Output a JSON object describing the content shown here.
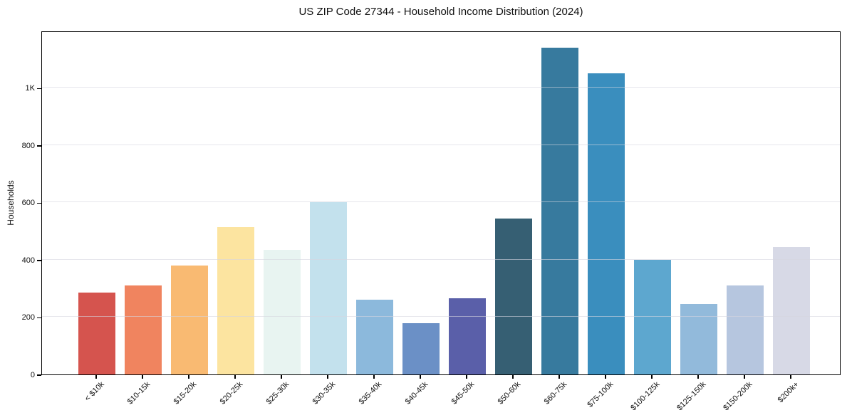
{
  "title": "US ZIP Code 27344 - Household Income Distribution (2024)",
  "chart_data": {
    "type": "bar",
    "title": "US ZIP Code 27344 - Household Income Distribution (2024)",
    "xlabel": "",
    "ylabel": "Households",
    "ylim": [
      0,
      1200
    ],
    "grid": "horizontal",
    "legend": "none",
    "yticks": [
      {
        "value": 0,
        "label": "0"
      },
      {
        "value": 200,
        "label": "200"
      },
      {
        "value": 400,
        "label": "400"
      },
      {
        "value": 600,
        "label": "600"
      },
      {
        "value": 800,
        "label": "800"
      },
      {
        "value": 1000,
        "label": "1K"
      }
    ],
    "categories": [
      "< $10k",
      "$10-15k",
      "$15-20k",
      "$20-25k",
      "$25-30k",
      "$30-35k",
      "$35-40k",
      "$40-45k",
      "$45-50k",
      "$50-60k",
      "$60-75k",
      "$75-100k",
      "$100-125k",
      "$125-150k",
      "$150-200k",
      "$200k+"
    ],
    "values": [
      285,
      310,
      380,
      515,
      435,
      600,
      260,
      180,
      265,
      545,
      1140,
      1050,
      400,
      245,
      310,
      445
    ],
    "bar_colors": [
      "#d5544e",
      "#f0845f",
      "#f9ba72",
      "#fce4a0",
      "#e8f4f1",
      "#c3e1ed",
      "#8cb9dc",
      "#6b90c6",
      "#5a5fa9",
      "#365f73",
      "#377a9e",
      "#3a8ebe",
      "#5da7cf",
      "#92badb",
      "#b6c6df",
      "#d7d9e6"
    ]
  },
  "colors": {
    "background": "#ffffff",
    "gridline": "#e6e6ee",
    "spine": "#000000",
    "text": "#111111"
  }
}
